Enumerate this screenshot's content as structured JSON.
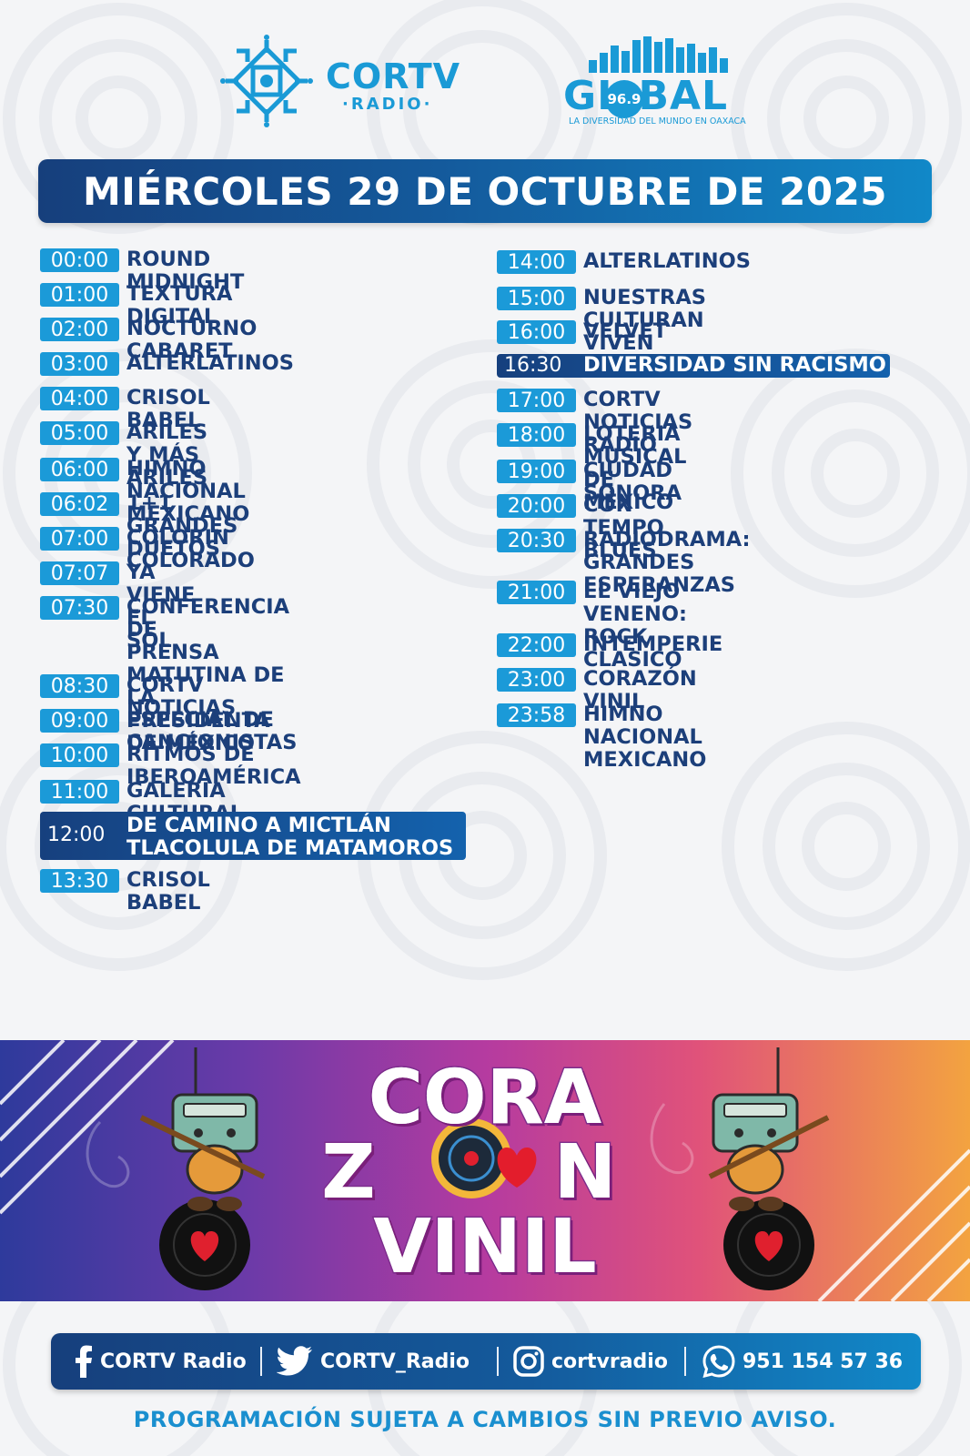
{
  "header": {
    "cortv_logo": {
      "name": "CORTV",
      "sub": "·RADIO·"
    },
    "global_logo": {
      "name": "GL   BAL",
      "frequency": "96.9",
      "tagline": "LA DIVERSIDAD DEL MUNDO EN OAXACA"
    }
  },
  "date": "MIÉRCOLES 29 DE OCTUBRE DE 2025",
  "schedule_left": [
    {
      "time": "00:00",
      "program": "ROUND MIDNIGHT"
    },
    {
      "time": "01:00",
      "program": "TEXTURA DIGITAL"
    },
    {
      "time": "02:00",
      "program": "NOCTURNO CABARET"
    },
    {
      "time": "03:00",
      "program": "ALTERLATINOS"
    },
    {
      "time": "04:00",
      "program": "CRISOL BABEL"
    },
    {
      "time": "05:00",
      "program": "ARILES Y MÁS ARILES"
    },
    {
      "time": "06:00",
      "program": "HIMNO NACIONAL MEXICANO"
    },
    {
      "time": "06:02",
      "program": "1+1 GRANDES DUETOS"
    },
    {
      "time": "07:00",
      "program": "COLORIN COLORADO"
    },
    {
      "time": "07:07",
      "program": "YA VIENE EL SOL"
    },
    {
      "time": "07:30",
      "program": "CONFERENCIA DE\nPRENSA MATUTINA DE\nLA PRESIDENTA DE MÉXICO"
    },
    {
      "time": "08:30",
      "program": "CORTV NOTICIAS"
    },
    {
      "time": "09:00",
      "program": "ESPECIAL DE CANCIONISTAS"
    },
    {
      "time": "10:00",
      "program": "RITMOS DE IBEROAMÉRICA"
    },
    {
      "time": "11:00",
      "program": "GALERIA CULTURAL"
    },
    {
      "time": "12:00",
      "program": "DE CAMINO A MICTLÁN\nTLACOLULA DE MATAMOROS",
      "highlight": true
    },
    {
      "time": "13:30",
      "program": "CRISOL BABEL"
    }
  ],
  "schedule_right": [
    {
      "time": "14:00",
      "program": "ALTERLATINOS"
    },
    {
      "time": "15:00",
      "program": "NUESTRAS CULTURAN VIVEN"
    },
    {
      "time": "16:00",
      "program": "VELVET"
    },
    {
      "time": "16:30",
      "program": "DIVERSIDAD SIN RACISMO",
      "highlight": true
    },
    {
      "time": "17:00",
      "program": "CORTV NOTICIAS RADIO"
    },
    {
      "time": "18:00",
      "program": "LOTERIA MUSICAL DE MÉXICO"
    },
    {
      "time": "19:00",
      "program": "CIUDAD SONORA"
    },
    {
      "time": "20:00",
      "program": "CON TEMPO BLUES"
    },
    {
      "time": "20:30",
      "program": "RADIODRAMA:\nGRANDES ESPERANZAS"
    },
    {
      "time": "21:00",
      "program": "EL VIEJO VENENO:\nROCK CLASICO"
    },
    {
      "time": "22:00",
      "program": "INTEMPERIE"
    },
    {
      "time": "23:00",
      "program": "CORAZÓN VINIL"
    },
    {
      "time": "23:58",
      "program": "HIMNO NACIONAL MEXICANO"
    }
  ],
  "promo": {
    "line1": "CORA",
    "line2_a": "Z",
    "line2_b": "N",
    "line3": "VINIL"
  },
  "social": [
    {
      "icon": "facebook-icon",
      "label": "CORTV Radio"
    },
    {
      "icon": "twitter-icon",
      "label": "CORTV_Radio"
    },
    {
      "icon": "instagram-icon",
      "label": "cortvradio"
    },
    {
      "icon": "whatsapp-icon",
      "label": "951 154 57 36"
    }
  ],
  "disclaimer": "PROGRAMACIÓN SUJETA A CAMBIOS SIN PREVIO AVISO.",
  "colors": {
    "accent_blue": "#1b9ad8",
    "navy": "#1c3f7a"
  }
}
